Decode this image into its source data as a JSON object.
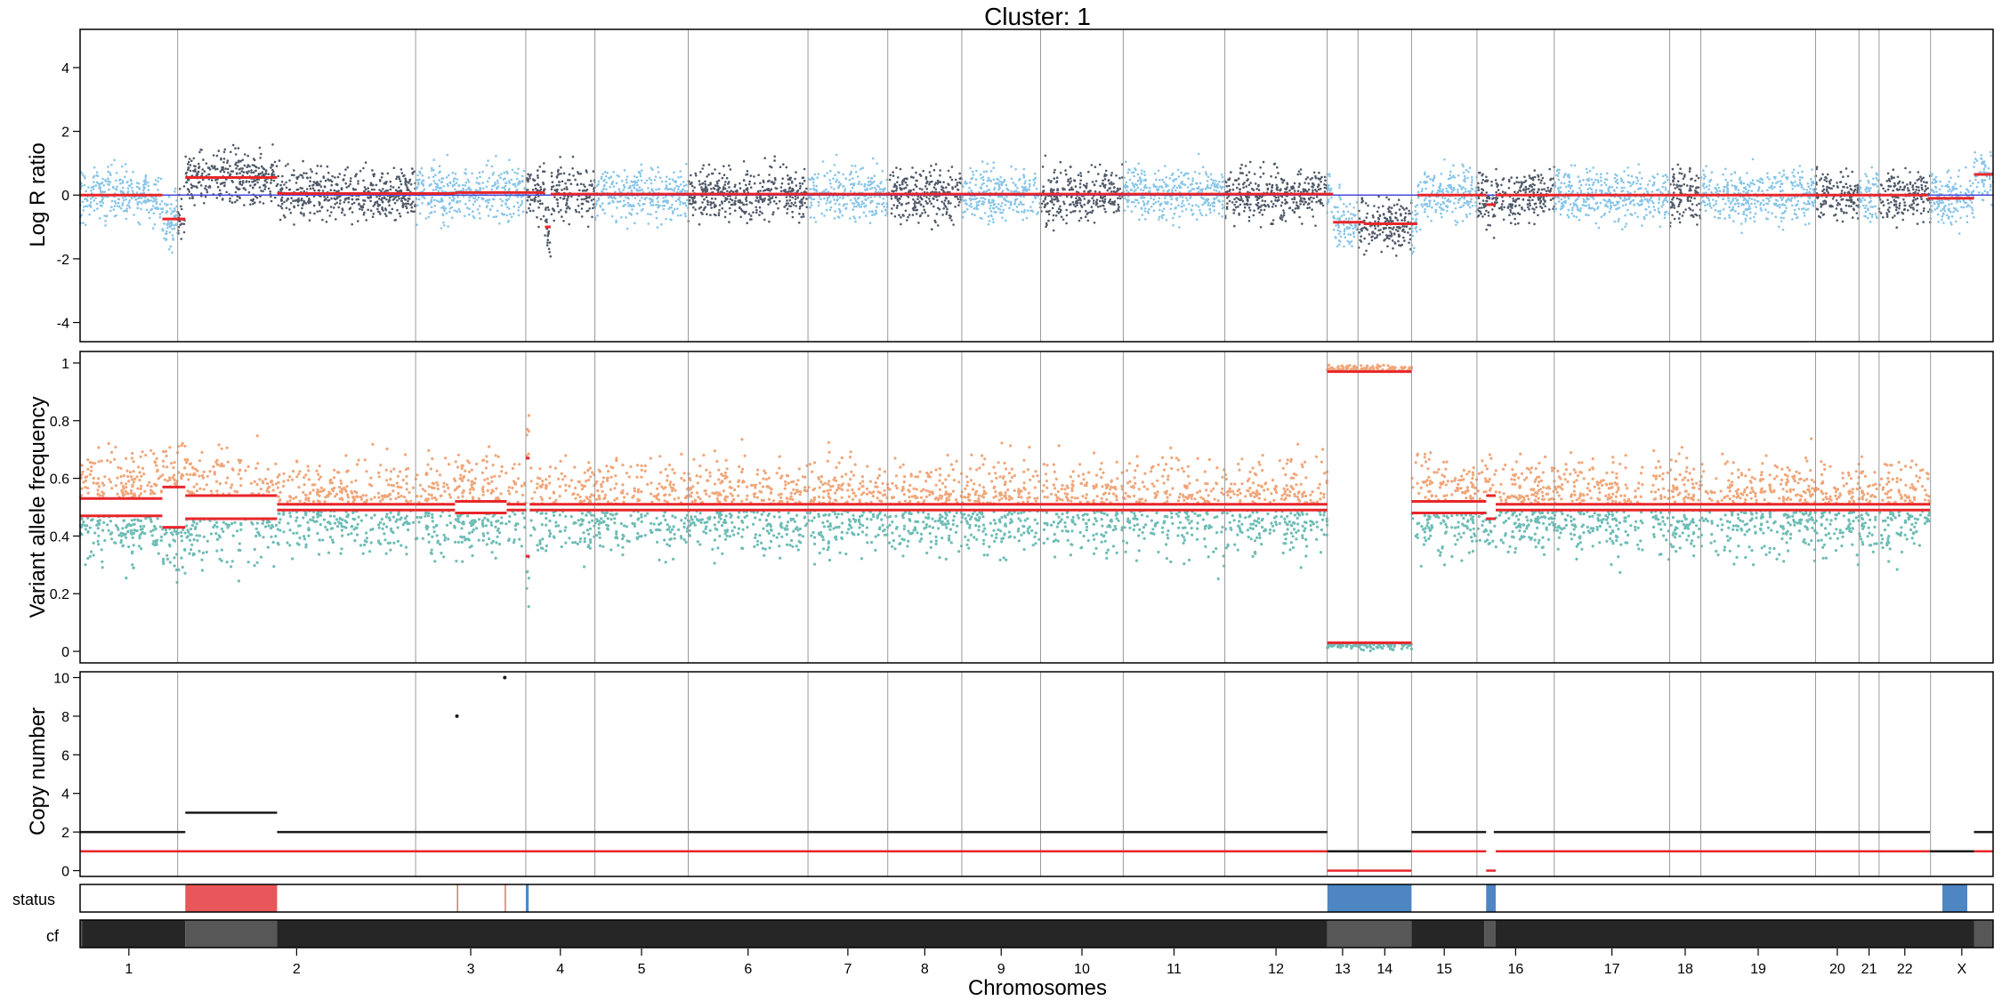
{
  "chart_data": {
    "type": "scatter",
    "title": "Cluster: 1",
    "xlabel": "Chromosomes",
    "chromosomes": [
      {
        "name": "1",
        "x0": 0.0,
        "x1": 0.051
      },
      {
        "name": "2",
        "x0": 0.051,
        "x1": 0.1754
      },
      {
        "name": "3",
        "x0": 0.1754,
        "x1": 0.233
      },
      {
        "name": "4",
        "x0": 0.233,
        "x1": 0.2691
      },
      {
        "name": "5",
        "x0": 0.2691,
        "x1": 0.3179
      },
      {
        "name": "6",
        "x0": 0.3179,
        "x1": 0.3805
      },
      {
        "name": "7",
        "x0": 0.3805,
        "x1": 0.4222
      },
      {
        "name": "8",
        "x0": 0.4222,
        "x1": 0.4609
      },
      {
        "name": "9",
        "x0": 0.4609,
        "x1": 0.5021
      },
      {
        "name": "10",
        "x0": 0.5021,
        "x1": 0.5453
      },
      {
        "name": "11",
        "x0": 0.5453,
        "x1": 0.5984
      },
      {
        "name": "12",
        "x0": 0.5984,
        "x1": 0.6519
      },
      {
        "name": "13",
        "x0": 0.6519,
        "x1": 0.668
      },
      {
        "name": "14",
        "x0": 0.668,
        "x1": 0.696
      },
      {
        "name": "15",
        "x0": 0.696,
        "x1": 0.7302
      },
      {
        "name": "16",
        "x0": 0.7302,
        "x1": 0.7706
      },
      {
        "name": "17",
        "x0": 0.7706,
        "x1": 0.8309
      },
      {
        "name": "18",
        "x0": 0.8309,
        "x1": 0.8472
      },
      {
        "name": "19",
        "x0": 0.8472,
        "x1": 0.9072
      },
      {
        "name": "20",
        "x0": 0.9072,
        "x1": 0.9299
      },
      {
        "name": "21",
        "x0": 0.9299,
        "x1": 0.9404
      },
      {
        "name": "22",
        "x0": 0.9404,
        "x1": 0.9673
      },
      {
        "name": "X",
        "x0": 0.9673,
        "x1": 1.0
      }
    ],
    "panels": {
      "log_r": {
        "ylabel": "Log R ratio",
        "ylim": [
          -4.6,
          5.2
        ],
        "yticks": [
          -4,
          -2,
          0,
          2,
          4
        ],
        "reference_line": 0,
        "segments": [
          {
            "x0": 0.0,
            "x1": 0.043,
            "y": 0.0
          },
          {
            "x0": 0.043,
            "x1": 0.055,
            "y": -0.75
          },
          {
            "x0": 0.055,
            "x1": 0.103,
            "y": 0.55
          },
          {
            "x0": 0.103,
            "x1": 0.196,
            "y": 0.05
          },
          {
            "x0": 0.196,
            "x1": 0.243,
            "y": 0.08
          },
          {
            "x0": 0.243,
            "x1": 0.246,
            "y": -1.0
          },
          {
            "x0": 0.246,
            "x1": 0.655,
            "y": 0.03
          },
          {
            "x0": 0.655,
            "x1": 0.671,
            "y": -0.85
          },
          {
            "x0": 0.671,
            "x1": 0.699,
            "y": -0.9
          },
          {
            "x0": 0.699,
            "x1": 0.735,
            "y": 0.0
          },
          {
            "x0": 0.735,
            "x1": 0.74,
            "y": -0.3
          },
          {
            "x0": 0.74,
            "x1": 0.966,
            "y": 0.0
          },
          {
            "x0": 0.966,
            "x1": 0.99,
            "y": -0.1
          },
          {
            "x0": 0.99,
            "x1": 1.0,
            "y": 0.65
          }
        ]
      },
      "vaf": {
        "ylabel": "Variant allele frequency",
        "ylim": [
          -0.04,
          1.04
        ],
        "yticks": [
          0.0,
          0.2,
          0.4,
          0.6,
          0.8,
          1.0
        ],
        "segments": [
          {
            "x0": 0.0,
            "x1": 0.043,
            "y": [
              0.47,
              0.53
            ]
          },
          {
            "x0": 0.043,
            "x1": 0.055,
            "y": [
              0.43,
              0.57
            ]
          },
          {
            "x0": 0.055,
            "x1": 0.103,
            "y": [
              0.46,
              0.54
            ]
          },
          {
            "x0": 0.103,
            "x1": 0.175,
            "y": [
              0.49,
              0.51
            ]
          },
          {
            "x0": 0.175,
            "x1": 0.196,
            "y": [
              0.49,
              0.51
            ]
          },
          {
            "x0": 0.196,
            "x1": 0.223,
            "y": [
              0.48,
              0.52
            ]
          },
          {
            "x0": 0.223,
            "x1": 0.233,
            "y": [
              0.49,
              0.51
            ]
          },
          {
            "x0": 0.233,
            "x1": 0.235,
            "y": [
              0.33,
              0.67
            ]
          },
          {
            "x0": 0.235,
            "x1": 0.652,
            "y": [
              0.49,
              0.51
            ]
          },
          {
            "x0": 0.652,
            "x1": 0.696,
            "y": [
              0.03,
              0.97
            ]
          },
          {
            "x0": 0.696,
            "x1": 0.735,
            "y": [
              0.48,
              0.52
            ]
          },
          {
            "x0": 0.735,
            "x1": 0.74,
            "y": [
              0.46,
              0.54
            ]
          },
          {
            "x0": 0.74,
            "x1": 0.967,
            "y": [
              0.49,
              0.51
            ]
          }
        ]
      },
      "copy_number": {
        "ylabel": "Copy number",
        "ylim": [
          -0.3,
          10.3
        ],
        "yticks": [
          0,
          2,
          4,
          6,
          8,
          10
        ],
        "total": [
          {
            "x0": 0.0,
            "x1": 0.055,
            "y": 2
          },
          {
            "x0": 0.055,
            "x1": 0.103,
            "y": 3
          },
          {
            "x0": 0.103,
            "x1": 0.652,
            "y": 2
          },
          {
            "x0": 0.652,
            "x1": 0.696,
            "y": 1
          },
          {
            "x0": 0.696,
            "x1": 0.735,
            "y": 2
          },
          {
            "x0": 0.739,
            "x1": 0.967,
            "y": 2
          },
          {
            "x0": 0.967,
            "x1": 0.99,
            "y": 1
          },
          {
            "x0": 0.99,
            "x1": 1.0,
            "y": 2
          }
        ],
        "minor": [
          {
            "x0": 0.0,
            "x1": 0.652,
            "y": 1
          },
          {
            "x0": 0.652,
            "x1": 0.696,
            "y": 0
          },
          {
            "x0": 0.696,
            "x1": 0.735,
            "y": 1
          },
          {
            "x0": 0.735,
            "x1": 0.74,
            "y": 0
          },
          {
            "x0": 0.74,
            "x1": 1.0,
            "y": 1
          }
        ],
        "outlier_points": [
          {
            "x": 0.197,
            "y": 8
          },
          {
            "x": 0.222,
            "y": 10
          }
        ]
      }
    },
    "tracks": {
      "status": {
        "label": "status",
        "blocks": [
          {
            "x0": 0.055,
            "x1": 0.103,
            "state": "gain"
          },
          {
            "x0": 0.197,
            "x1": 0.1976,
            "state": "gain"
          },
          {
            "x0": 0.222,
            "x1": 0.2226,
            "state": "gain"
          },
          {
            "x0": 0.233,
            "x1": 0.2345,
            "state": "loss"
          },
          {
            "x0": 0.652,
            "x1": 0.696,
            "state": "loss"
          },
          {
            "x0": 0.735,
            "x1": 0.74,
            "state": "loss"
          },
          {
            "x0": 0.9735,
            "x1": 0.9865,
            "state": "loss"
          }
        ]
      },
      "cf": {
        "label": "cf",
        "blocks": [
          {
            "x0": 0.0,
            "x1": 0.001,
            "shade": "light"
          },
          {
            "x0": 0.001,
            "x1": 0.055,
            "shade": "dark"
          },
          {
            "x0": 0.055,
            "x1": 0.103,
            "shade": "light"
          },
          {
            "x0": 0.103,
            "x1": 0.652,
            "shade": "dark"
          },
          {
            "x0": 0.652,
            "x1": 0.696,
            "shade": "light"
          },
          {
            "x0": 0.696,
            "x1": 0.734,
            "shade": "dark"
          },
          {
            "x0": 0.734,
            "x1": 0.74,
            "shade": "light"
          },
          {
            "x0": 0.74,
            "x1": 0.99,
            "shade": "dark"
          },
          {
            "x0": 0.99,
            "x1": 1.0,
            "shade": "light"
          }
        ]
      }
    },
    "colors": {
      "points_light": "#87c5e8",
      "points_dark": "#4f5968",
      "vaf_orange": "#f0a679",
      "vaf_teal": "#6dbdb6",
      "segment_red": "#e8262a",
      "reference_blue": "#4a4ad8",
      "total_cn": "#1a1a1a",
      "gain": "#e8585a",
      "loss": "#4e86c4",
      "cf_dark": "#262626",
      "cf_light": "#575757",
      "chrom_line": "#9a9a9a"
    }
  }
}
